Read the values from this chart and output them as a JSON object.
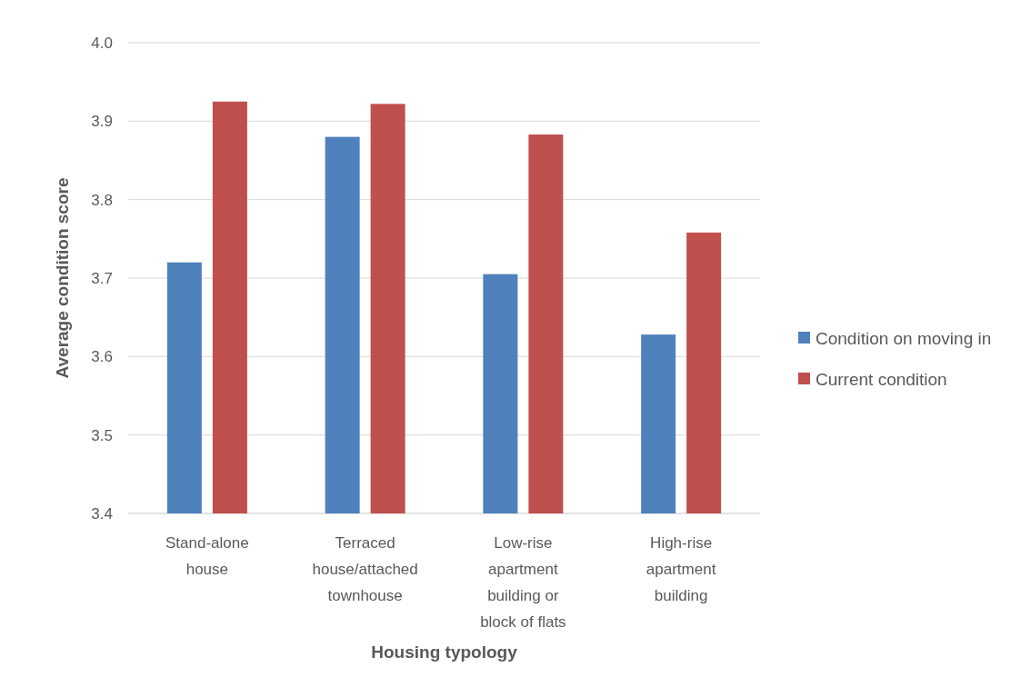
{
  "chart_data": {
    "type": "bar",
    "xlabel": "Housing typology",
    "ylabel": "Average condition score",
    "categories": [
      "Stand-alone house",
      "Terraced house/attached townhouse",
      "Low-rise apartment building or block of flats",
      "High-rise apartment building"
    ],
    "series": [
      {
        "name": "Condition on moving in",
        "color": "#4f81bd",
        "values": [
          3.72,
          3.88,
          3.705,
          3.628
        ]
      },
      {
        "name": "Current condition",
        "color": "#c0504d",
        "values": [
          3.925,
          3.922,
          3.883,
          3.758
        ]
      }
    ],
    "ylim": [
      3.4,
      4.0
    ],
    "yticks": [
      {
        "value": 3.4,
        "label": "3.4"
      },
      {
        "value": 3.5,
        "label": "3.5"
      },
      {
        "value": 3.6,
        "label": "3.6"
      },
      {
        "value": 3.7,
        "label": "3.7"
      },
      {
        "value": 3.8,
        "label": "3.8"
      },
      {
        "value": 3.9,
        "label": "3.9"
      },
      {
        "value": 4.0,
        "label": "4.0"
      }
    ],
    "grid": "y",
    "legend": "right"
  }
}
